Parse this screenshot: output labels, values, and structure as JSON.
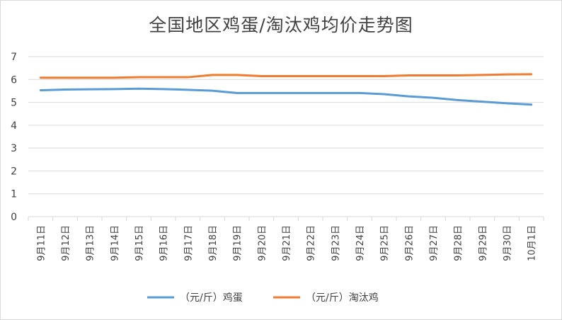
{
  "chart_data": {
    "type": "line",
    "title": "全国地区鸡蛋/淘汰鸡均价走势图",
    "xlabel": "",
    "ylabel": "",
    "ylim": [
      0,
      7
    ],
    "yticks": [
      0,
      1,
      2,
      3,
      4,
      5,
      6,
      7
    ],
    "grid": true,
    "legend_position": "bottom",
    "categories": [
      "9月11日",
      "9月12日",
      "9月13日",
      "9月14日",
      "9月15日",
      "9月16日",
      "9月17日",
      "9月18日",
      "9月19日",
      "9月20日",
      "9月21日",
      "9月22日",
      "9月23日",
      "9月24日",
      "9月25日",
      "9月26日",
      "9月27日",
      "9月28日",
      "9月29日",
      "9月30日",
      "10月1日"
    ],
    "series": [
      {
        "name": "（元/斤）鸡蛋",
        "color": "#5b9bd5",
        "values": [
          5.53,
          5.56,
          5.57,
          5.58,
          5.6,
          5.58,
          5.55,
          5.51,
          5.41,
          5.41,
          5.41,
          5.41,
          5.41,
          5.41,
          5.36,
          5.26,
          5.2,
          5.1,
          5.03,
          4.96,
          4.9
        ]
      },
      {
        "name": "（元/斤）淘汰鸡",
        "color": "#ed7d31",
        "values": [
          6.08,
          6.08,
          6.08,
          6.08,
          6.1,
          6.1,
          6.1,
          6.2,
          6.2,
          6.15,
          6.15,
          6.15,
          6.15,
          6.15,
          6.15,
          6.18,
          6.18,
          6.18,
          6.2,
          6.22,
          6.23
        ]
      }
    ]
  }
}
